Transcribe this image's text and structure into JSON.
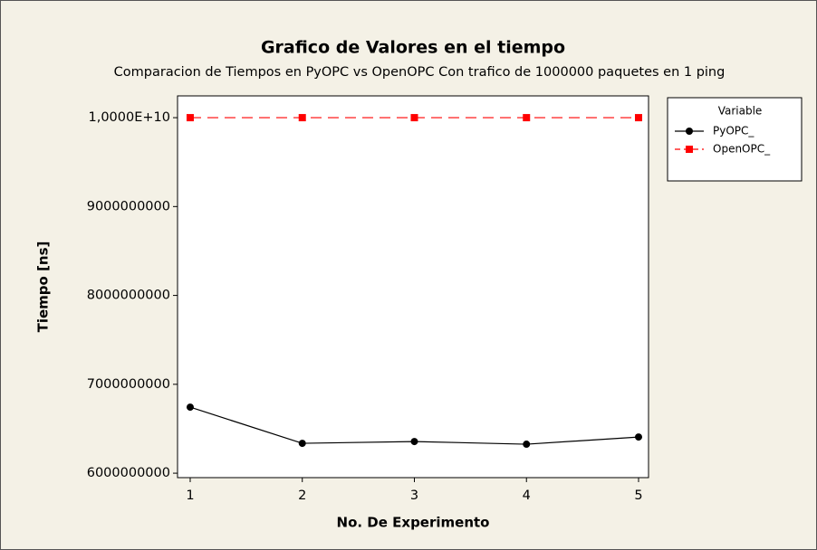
{
  "chart_data": {
    "type": "line",
    "title": "Grafico de Valores en el tiempo",
    "subtitle": "Comparacion de Tiempos en PyOPC vs OpenOPC Con trafico de 1000000 paquetes en 1 ping",
    "x_label": "No. De Experimento",
    "y_label": "Tiempo [ns]",
    "x": [
      1,
      2,
      3,
      4,
      5
    ],
    "series": [
      {
        "name": "PyOPC_",
        "color": "#000000",
        "marker": "circle",
        "dash": false,
        "values": [
          6743000000,
          6336000000,
          6356000000,
          6326000000,
          6407000000
        ]
      },
      {
        "name": "OpenOPC_",
        "color": "#ff0000",
        "marker": "square",
        "dash": true,
        "values": [
          10000000000,
          10000000000,
          10000000000,
          10000000000,
          10000000000
        ]
      }
    ],
    "xlim": [
      0.887,
      5.089
    ],
    "xticks": [
      1,
      2,
      3,
      4,
      5
    ],
    "ylim": [
      5950000000,
      10245000000
    ],
    "yticks": [
      6000000000,
      7000000000,
      8000000000,
      9000000000,
      {
        "value": 10000000000,
        "label": "1,0000E+10"
      }
    ],
    "legend_title": "Variable",
    "legend": "right",
    "grid": false
  }
}
